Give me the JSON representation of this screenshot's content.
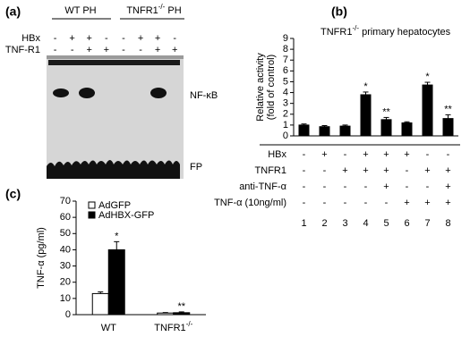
{
  "panel_a": {
    "label": "(a)",
    "groups": [
      [
        {
          "text": "WT PH"
        }
      ],
      [
        {
          "text": "TNFR1"
        },
        {
          "text": "-/-",
          "sup": true
        },
        {
          "text": " PH"
        }
      ]
    ],
    "rows": [
      {
        "name": "HBx",
        "cells": [
          "-",
          "+",
          "+",
          "-",
          "-",
          "+",
          "+",
          "-"
        ]
      },
      {
        "name": "TNF-R1",
        "cells": [
          "-",
          "-",
          "+",
          "+",
          "-",
          "-",
          "+",
          "+"
        ]
      }
    ],
    "band_labels": [
      "NF-κB",
      "FP"
    ]
  },
  "chart_data": [
    {
      "type": "bar",
      "label": "(b)",
      "title": [
        {
          "text": "TNFR1"
        },
        {
          "text": "-/-",
          "sup": true
        },
        {
          "text": " primary hepatocytes"
        }
      ],
      "y_label": [
        "Relative activity",
        "(fold of control)"
      ],
      "categories": [
        "1",
        "2",
        "3",
        "4",
        "5",
        "6",
        "7",
        "8"
      ],
      "values": [
        1.0,
        0.85,
        0.9,
        3.8,
        1.5,
        1.2,
        4.7,
        1.6
      ],
      "errors": [
        0.1,
        0.1,
        0.1,
        0.25,
        0.2,
        0.1,
        0.25,
        0.35
      ],
      "significance": [
        null,
        null,
        null,
        "*",
        "**",
        null,
        "*",
        "**"
      ],
      "color": "#000000",
      "ylim": [
        0,
        9
      ],
      "yticks": [
        0,
        1,
        2,
        3,
        4,
        5,
        6,
        7,
        8,
        9
      ],
      "conditions": [
        {
          "name": "HBx",
          "cells": [
            "-",
            "+",
            "-",
            "+",
            "+",
            "+",
            "-",
            "-"
          ]
        },
        {
          "name": "TNFR1",
          "cells": [
            "-",
            "-",
            "+",
            "+",
            "+",
            "-",
            "+",
            "+"
          ]
        },
        {
          "name": "anti-TNF-α",
          "cells": [
            "-",
            "-",
            "-",
            "-",
            "+",
            "-",
            "-",
            "+"
          ]
        },
        {
          "name": "TNF-α (10ng/ml)",
          "cells": [
            "-",
            "-",
            "-",
            "-",
            "-",
            "+",
            "+",
            "+"
          ]
        }
      ]
    },
    {
      "type": "grouped-bar",
      "label": "(c)",
      "y_label": "TNF-α (pg/ml)",
      "categories": [
        [
          {
            "text": "WT"
          }
        ],
        [
          {
            "text": "TNFR1"
          },
          {
            "text": "-/-",
            "sup": true
          }
        ]
      ],
      "series": [
        {
          "name": "AdGFP",
          "color": "#ffffff",
          "values": [
            13,
            1
          ],
          "errors": [
            1,
            0.3
          ],
          "significance": [
            null,
            null
          ]
        },
        {
          "name": "AdHBX-GFP",
          "color": "#000000",
          "values": [
            40,
            1.2
          ],
          "errors": [
            5,
            0.5
          ],
          "significance": [
            "*",
            "**"
          ]
        }
      ],
      "ylim": [
        0,
        70
      ],
      "yticks": [
        0,
        10,
        20,
        30,
        40,
        50,
        60,
        70
      ]
    }
  ]
}
